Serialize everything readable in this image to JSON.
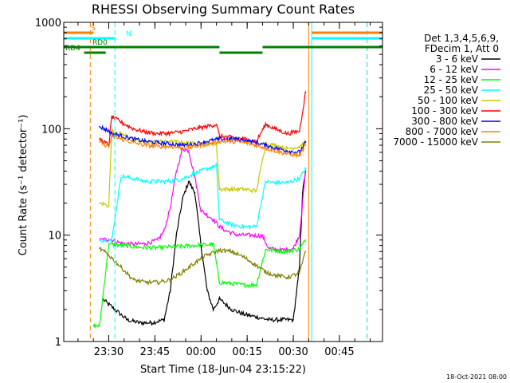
{
  "chart_data": {
    "type": "line",
    "title": "RHESSI Observing Summary Count Rates",
    "xlabel": "Start Time (18-Jun-04 23:15:22)",
    "ylabel": "Count Rate (s⁻¹ detector⁻¹)",
    "y_scale": "log",
    "ylim": [
      1,
      1000
    ],
    "xlim": [
      "23:15:22",
      "00:59:00"
    ],
    "x_ticks": [
      "23:30",
      "23:45",
      "00:00",
      "00:15",
      "00:30",
      "00:45"
    ],
    "y_ticks": [
      "1",
      "10",
      "100",
      "1000"
    ],
    "legend_header": [
      "Det 1,3,4,5,6,9,",
      "FDecim 1, Att 0"
    ],
    "legend_position": "right",
    "timestamp": "18-Oct-2021 08:00",
    "series": [
      {
        "name": "3 - 6 keV",
        "color": "#000000",
        "x": [
          "23:24",
          "23:28",
          "23:32",
          "23:36",
          "23:40",
          "23:44",
          "23:48",
          "23:50",
          "23:52",
          "23:54",
          "23:56",
          "23:58",
          "00:00",
          "00:02",
          "00:04",
          "00:06",
          "00:10",
          "00:14",
          "00:18",
          "00:22",
          "00:26",
          "00:30",
          "00:32",
          "00:33",
          "00:34"
        ],
        "values": [
          null,
          2.5,
          2.0,
          1.6,
          1.5,
          1.5,
          1.6,
          3.0,
          10,
          22,
          32,
          25,
          8,
          3,
          2,
          2.5,
          2.0,
          1.8,
          1.7,
          1.6,
          1.6,
          1.6,
          5,
          25,
          40
        ]
      },
      {
        "name": "6 - 12 keV",
        "color": "#ff00ff",
        "x": [
          "23:27",
          "23:30",
          "23:34",
          "23:38",
          "23:42",
          "23:46",
          "23:48",
          "23:50",
          "23:52",
          "23:54",
          "23:56",
          "23:58",
          "00:00",
          "00:04",
          "00:06",
          "00:08",
          "00:12",
          "00:16",
          "00:20",
          "00:22",
          "00:26",
          "00:30",
          "00:32",
          "00:34"
        ],
        "values": [
          9,
          9.2,
          8.4,
          8.2,
          8.3,
          9,
          11,
          18,
          40,
          65,
          62,
          35,
          17,
          14,
          12,
          11,
          10,
          10,
          9.8,
          7.5,
          7.2,
          7.5,
          10,
          40
        ]
      },
      {
        "name": "12 - 25 keV",
        "color": "#00ff00",
        "x": [
          "23:25",
          "23:27",
          "23:30",
          "23:34",
          "23:40",
          "23:46",
          "23:52",
          "23:58",
          "00:04",
          "00:06",
          "00:10",
          "00:14",
          "00:18",
          "00:21",
          "00:24",
          "00:28",
          "00:32",
          "00:34"
        ],
        "values": [
          1.4,
          1.4,
          8.2,
          8.0,
          7.7,
          7.6,
          7.8,
          8.0,
          8.2,
          3.6,
          3.5,
          3.4,
          3.4,
          7.3,
          7.2,
          7.0,
          7.4,
          9
        ]
      },
      {
        "name": "25 - 50 keV",
        "color": "#00ffff",
        "x": [
          "23:27",
          "23:31",
          "23:34",
          "23:38",
          "23:42",
          "23:46",
          "23:50",
          "23:54",
          "23:58",
          "00:02",
          "00:05",
          "00:06",
          "00:10",
          "00:14",
          "00:18",
          "00:21",
          "00:24",
          "00:28",
          "00:32",
          "00:34"
        ],
        "values": [
          9,
          9,
          36,
          34,
          32,
          32,
          32,
          34,
          38,
          42,
          45,
          14,
          12.5,
          12,
          12,
          32,
          31,
          31,
          34,
          42
        ]
      },
      {
        "name": "50 - 100 keV",
        "color": "#c8c800",
        "x": [
          "23:27",
          "23:30",
          "23:31",
          "23:34",
          "23:38",
          "23:42",
          "23:46",
          "23:50",
          "23:54",
          "23:58",
          "00:02",
          "00:05",
          "00:06",
          "00:10",
          "00:14",
          "00:18",
          "00:21",
          "00:24",
          "00:28",
          "00:32",
          "00:34"
        ],
        "values": [
          20,
          19,
          95,
          90,
          78,
          75,
          75,
          76,
          74,
          72,
          72,
          72,
          27,
          27,
          27,
          26,
          72,
          70,
          65,
          68,
          75
        ]
      },
      {
        "name": "100 - 300 keV",
        "color": "#ff0000",
        "x": [
          "23:27",
          "23:30",
          "23:31",
          "23:34",
          "23:38",
          "23:42",
          "23:46",
          "23:50",
          "23:54",
          "23:58",
          "00:02",
          "00:05",
          "00:06",
          "00:10",
          "00:14",
          "00:18",
          "00:21",
          "00:24",
          "00:28",
          "00:32",
          "00:34"
        ],
        "values": [
          80,
          70,
          130,
          115,
          100,
          93,
          90,
          91,
          94,
          100,
          105,
          110,
          85,
          83,
          80,
          76,
          110,
          100,
          90,
          95,
          220
        ]
      },
      {
        "name": "300 - 800 keV",
        "color": "#0000ff",
        "x": [
          "23:27",
          "23:30",
          "23:31",
          "23:34",
          "23:38",
          "23:42",
          "23:46",
          "23:50",
          "23:54",
          "23:58",
          "00:02",
          "00:06",
          "00:10",
          "00:14",
          "00:18",
          "00:21",
          "00:24",
          "00:28",
          "00:32",
          "00:34"
        ],
        "values": [
          105,
          95,
          90,
          86,
          80,
          76,
          74,
          72,
          70,
          72,
          76,
          80,
          80,
          78,
          74,
          70,
          66,
          62,
          60,
          75
        ]
      },
      {
        "name": "800 - 7000 keV",
        "color": "#ff8000",
        "x": [
          "23:27",
          "23:30",
          "23:31",
          "23:34",
          "23:38",
          "23:42",
          "23:46",
          "23:50",
          "23:54",
          "23:58",
          "00:02",
          "00:06",
          "00:10",
          "00:14",
          "00:18",
          "00:21",
          "00:24",
          "00:28",
          "00:32",
          "00:34"
        ],
        "values": [
          75,
          68,
          85,
          80,
          74,
          70,
          68,
          68,
          66,
          68,
          72,
          76,
          76,
          74,
          70,
          66,
          62,
          58,
          56,
          70
        ]
      },
      {
        "name": "7000 - 15000 keV",
        "color": "#808000",
        "x": [
          "23:27",
          "23:30",
          "23:34",
          "23:38",
          "23:42",
          "23:46",
          "23:50",
          "23:54",
          "23:58",
          "00:02",
          "00:06",
          "00:10",
          "00:14",
          "00:18",
          "00:21",
          "00:24",
          "00:28",
          "00:32",
          "00:34"
        ],
        "values": [
          7.5,
          6.5,
          5,
          3.8,
          3.6,
          3.6,
          3.8,
          4.5,
          5.5,
          6.5,
          7.2,
          7.0,
          6.2,
          5.2,
          4.5,
          4.2,
          4.0,
          4.4,
          7
        ]
      }
    ],
    "annotations": [
      {
        "label": "S",
        "color": "#ff8000",
        "intervals": [
          [
            "23:15:22",
            "23:25"
          ],
          [
            "00:36",
            "00:59"
          ]
        ]
      },
      {
        "label": "N",
        "color": "#00ffff",
        "intervals": [
          [
            "23:15:22",
            "23:32"
          ],
          [
            "00:36",
            "00:59"
          ]
        ]
      },
      {
        "label": "RD0",
        "color": "#008000",
        "intervals": [
          [
            "23:15:22",
            "23:33"
          ],
          [
            "23:33",
            "00:06"
          ],
          [
            "00:20",
            "00:59"
          ]
        ]
      },
      {
        "label": "RD4",
        "color": "#008000",
        "intervals": [
          [
            "23:22",
            "23:29"
          ],
          [
            "00:06",
            "00:20"
          ]
        ]
      }
    ],
    "vertical_markers": [
      {
        "x": "23:24",
        "color": "#ff8000",
        "style": "dashed"
      },
      {
        "x": "23:32",
        "color": "#00ffff",
        "style": "dashed"
      },
      {
        "x": "00:35",
        "color": "#ff8000",
        "style": "solid"
      },
      {
        "x": "00:36",
        "color": "#00ffff",
        "style": "solid"
      },
      {
        "x": "00:54",
        "color": "#ff8000",
        "style": "dashed"
      },
      {
        "x": "00:54",
        "color": "#00ffff",
        "style": "dashed"
      },
      {
        "x": "23:15:22",
        "color": "#00ffff",
        "style": "solid"
      }
    ]
  }
}
